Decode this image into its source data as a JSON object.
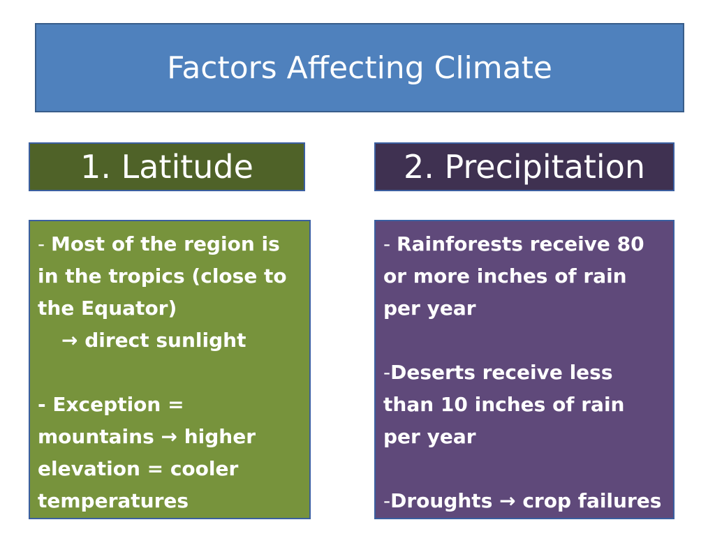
{
  "slide": {
    "title": "Factors Affecting Climate",
    "colors": {
      "title_bg": "#4f81bd",
      "latitude_header_bg": "#4f6228",
      "latitude_body_bg": "#77933c",
      "precip_header_bg": "#3f3151",
      "precip_body_bg": "#5f497a",
      "text": "#ffffff"
    }
  },
  "latitude": {
    "heading": "1. Latitude",
    "p1_dash": "- ",
    "p1_text": "Most of the region is in the tropics (close to the Equator)",
    "p2_arrow": "→",
    "p2_text": " direct sunlight",
    "p3_text": "- Exception = mountains ",
    "p3_arrow": "→",
    "p3_text2": " higher elevation = cooler temperatures"
  },
  "precipitation": {
    "heading": "2. Precipitation",
    "p1_dash": "- ",
    "p1_text": "Rainforests receive 80 or more inches of rain per year",
    "p2_dash": "-",
    "p2_text": "Deserts receive less than 10 inches of rain per year",
    "p3_dash": "-",
    "p3_text": "Droughts ",
    "p3_arrow": "→",
    "p3_text2": " crop failures and starvation"
  }
}
